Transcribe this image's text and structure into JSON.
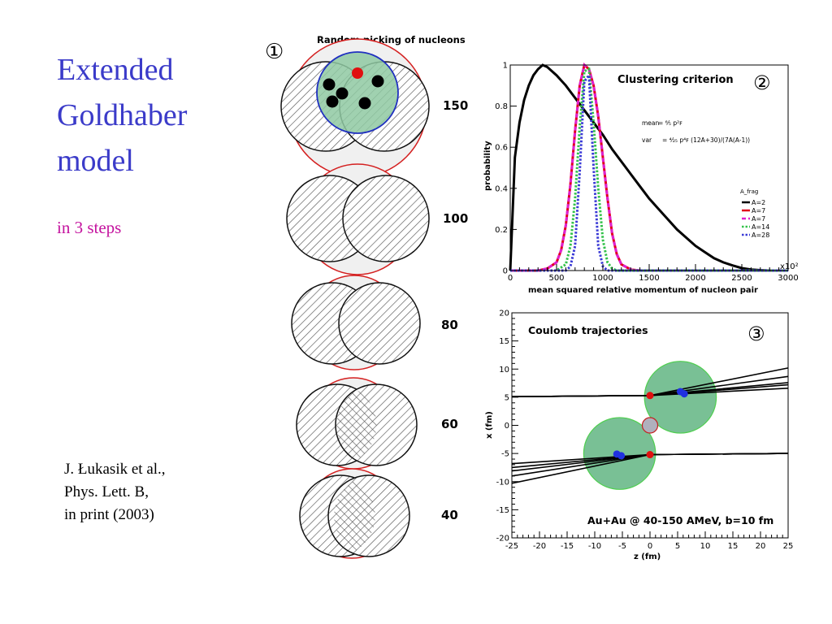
{
  "slide": {
    "title_lines": [
      "Extended",
      "Goldhaber",
      "model"
    ],
    "subtitle": "in 3 steps",
    "citation_lines": [
      "J. Łukasik et al.,",
      "Phys. Lett. B,",
      "in print (2003)"
    ]
  },
  "step1": {
    "marker": "①",
    "title": "Random picking of nucleons",
    "energies": [
      "150",
      "100",
      "80",
      "60",
      "40"
    ]
  },
  "chart_data": [
    {
      "type": "line",
      "marker": "②",
      "title": "Clustering criterion",
      "xlabel": "mean squared relative momentum of nucleon pair",
      "x_multiplier_label": "x10²",
      "ylabel": "probability",
      "xlim": [
        0,
        3000
      ],
      "ylim": [
        0,
        1
      ],
      "xticks": [
        0,
        500,
        1000,
        1500,
        2000,
        2500,
        3000
      ],
      "yticks": [
        0,
        0.2,
        0.4,
        0.6,
        0.8,
        1
      ],
      "formula_mean_label": "mean",
      "formula_var_label": "var",
      "legend_title": "A_frag",
      "series": [
        {
          "name": "A=2",
          "color": "#000000",
          "style": "solid",
          "x": [
            0,
            50,
            100,
            150,
            200,
            250,
            300,
            350,
            400,
            500,
            600,
            700,
            800,
            900,
            1000,
            1100,
            1200,
            1300,
            1400,
            1500,
            1600,
            1700,
            1800,
            1900,
            2000,
            2100,
            2200,
            2300,
            2400,
            2500,
            2600,
            2700,
            2800,
            3000
          ],
          "y": [
            0,
            0.55,
            0.72,
            0.83,
            0.9,
            0.95,
            0.98,
            1.0,
            0.99,
            0.95,
            0.9,
            0.84,
            0.78,
            0.72,
            0.66,
            0.59,
            0.53,
            0.47,
            0.41,
            0.35,
            0.3,
            0.25,
            0.2,
            0.16,
            0.12,
            0.09,
            0.06,
            0.04,
            0.025,
            0.012,
            0.005,
            0.002,
            0,
            0
          ]
        },
        {
          "name": "A=7",
          "color": "#e0001b",
          "style": "solid",
          "x": [
            0,
            300,
            400,
            500,
            550,
            600,
            650,
            700,
            750,
            800,
            850,
            900,
            950,
            1000,
            1050,
            1100,
            1150,
            1200,
            1300,
            1400,
            3000
          ],
          "y": [
            0,
            0,
            0.01,
            0.04,
            0.1,
            0.22,
            0.42,
            0.68,
            0.9,
            1.0,
            0.98,
            0.9,
            0.75,
            0.55,
            0.35,
            0.18,
            0.08,
            0.03,
            0.005,
            0,
            0
          ]
        },
        {
          "name": "A=7",
          "color": "#e020d0",
          "style": "dashed",
          "x": [
            0,
            300,
            400,
            500,
            550,
            600,
            650,
            700,
            750,
            800,
            850,
            900,
            950,
            1000,
            1050,
            1100,
            1150,
            1200,
            1300,
            1400,
            3000
          ],
          "y": [
            0,
            0,
            0.01,
            0.04,
            0.1,
            0.22,
            0.42,
            0.68,
            0.9,
            1.0,
            0.98,
            0.9,
            0.75,
            0.55,
            0.35,
            0.18,
            0.08,
            0.03,
            0.005,
            0,
            0
          ]
        },
        {
          "name": "A=14",
          "color": "#33c24a",
          "style": "dotted",
          "x": [
            0,
            500,
            600,
            650,
            700,
            750,
            800,
            850,
            900,
            950,
            1000,
            1050,
            1100,
            1150,
            1200,
            3000
          ],
          "y": [
            0,
            0,
            0.03,
            0.12,
            0.35,
            0.7,
            0.97,
            0.98,
            0.72,
            0.4,
            0.15,
            0.04,
            0.01,
            0,
            0,
            0
          ]
        },
        {
          "name": "A=28",
          "color": "#3a3ad6",
          "style": "dotted",
          "x": [
            0,
            600,
            650,
            700,
            750,
            800,
            850,
            900,
            950,
            1000,
            1050,
            3000
          ],
          "y": [
            0,
            0,
            0.02,
            0.12,
            0.48,
            0.92,
            0.95,
            0.5,
            0.12,
            0.02,
            0,
            0
          ]
        }
      ]
    },
    {
      "type": "line",
      "marker": "③",
      "title": "Coulomb trajectories",
      "annotation": "Au+Au @ 40-150 AMeV, b=10 fm",
      "xlabel": "z (fm)",
      "ylabel": "x (fm)",
      "xlim": [
        -25,
        25
      ],
      "ylim": [
        -20,
        20
      ],
      "xticks": [
        -25,
        -20,
        -15,
        -10,
        -5,
        0,
        5,
        10,
        15,
        20,
        25
      ],
      "yticks": [
        -20,
        -15,
        -10,
        -5,
        0,
        5,
        10,
        15,
        20
      ],
      "nuclei": [
        {
          "z": 5.5,
          "x": 5.0,
          "r": 6.5
        },
        {
          "z": -5.5,
          "x": -5.0,
          "r": 6.5
        }
      ],
      "participant": {
        "z": 0,
        "x": 0,
        "r": 1.4
      },
      "markers": [
        {
          "z": 0,
          "x": 5.3,
          "color": "#e01010"
        },
        {
          "z": 0,
          "x": -5.2,
          "color": "#e01010"
        },
        {
          "z": 5.5,
          "x": 6.0,
          "color": "#2030e0"
        },
        {
          "z": 6.2,
          "x": 5.6,
          "color": "#2030e0"
        },
        {
          "z": -6.0,
          "x": -5.1,
          "color": "#2030e0"
        },
        {
          "z": -5.2,
          "x": -5.4,
          "color": "#2030e0"
        }
      ],
      "series": [
        {
          "z": [
            -25,
            0,
            25
          ],
          "x": [
            5.1,
            5.3,
            10.2
          ]
        },
        {
          "z": [
            -25,
            0,
            25
          ],
          "x": [
            5.1,
            5.3,
            8.7
          ]
        },
        {
          "z": [
            -25,
            0,
            25
          ],
          "x": [
            5.1,
            5.3,
            7.6
          ]
        },
        {
          "z": [
            -25,
            0,
            25
          ],
          "x": [
            5.1,
            5.3,
            7.2
          ]
        },
        {
          "z": [
            -25,
            0,
            25
          ],
          "x": [
            5.1,
            5.3,
            6.6
          ]
        },
        {
          "z": [
            -25,
            0,
            25
          ],
          "x": [
            -10.3,
            -5.2,
            -5.0
          ]
        },
        {
          "z": [
            -25,
            0,
            25
          ],
          "x": [
            -9.0,
            -5.2,
            -5.0
          ]
        },
        {
          "z": [
            -25,
            0,
            25
          ],
          "x": [
            -8.1,
            -5.2,
            -5.0
          ]
        },
        {
          "z": [
            -25,
            0,
            25
          ],
          "x": [
            -7.5,
            -5.2,
            -5.0
          ]
        },
        {
          "z": [
            -25,
            0,
            25
          ],
          "x": [
            -6.8,
            -5.2,
            -5.0
          ]
        }
      ]
    }
  ]
}
